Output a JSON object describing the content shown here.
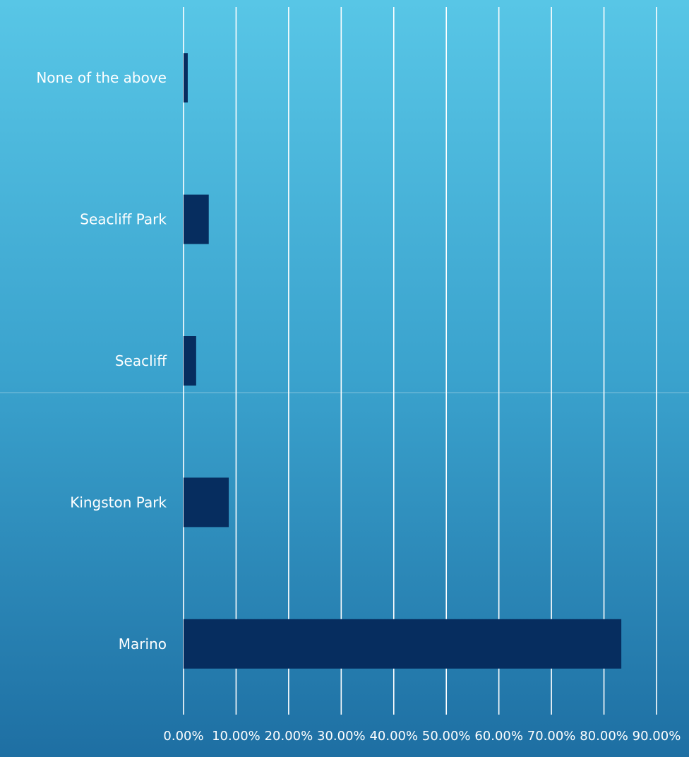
{
  "chart_data": {
    "type": "bar",
    "orientation": "horizontal",
    "categories": [
      "Marino",
      "Kingston Park",
      "Seacliff",
      "Seacliff Park",
      "None of the above"
    ],
    "values": [
      83.3,
      8.6,
      2.4,
      4.8,
      0.8
    ],
    "value_unit": "%",
    "xlim": [
      0,
      90
    ],
    "xticks": [
      "0.00%",
      "10.00%",
      "20.00%",
      "30.00%",
      "40.00%",
      "50.00%",
      "60.00%",
      "70.00%",
      "80.00%",
      "90.00%"
    ],
    "grid": "vertical",
    "legend": "none",
    "title": "",
    "xlabel": "",
    "ylabel": "",
    "colors": {
      "bar": "#062d5f",
      "grid": "#ffffff",
      "text": "#ffffff",
      "background_top": "#58c6e6",
      "background_bottom": "#1e6fa3"
    }
  }
}
